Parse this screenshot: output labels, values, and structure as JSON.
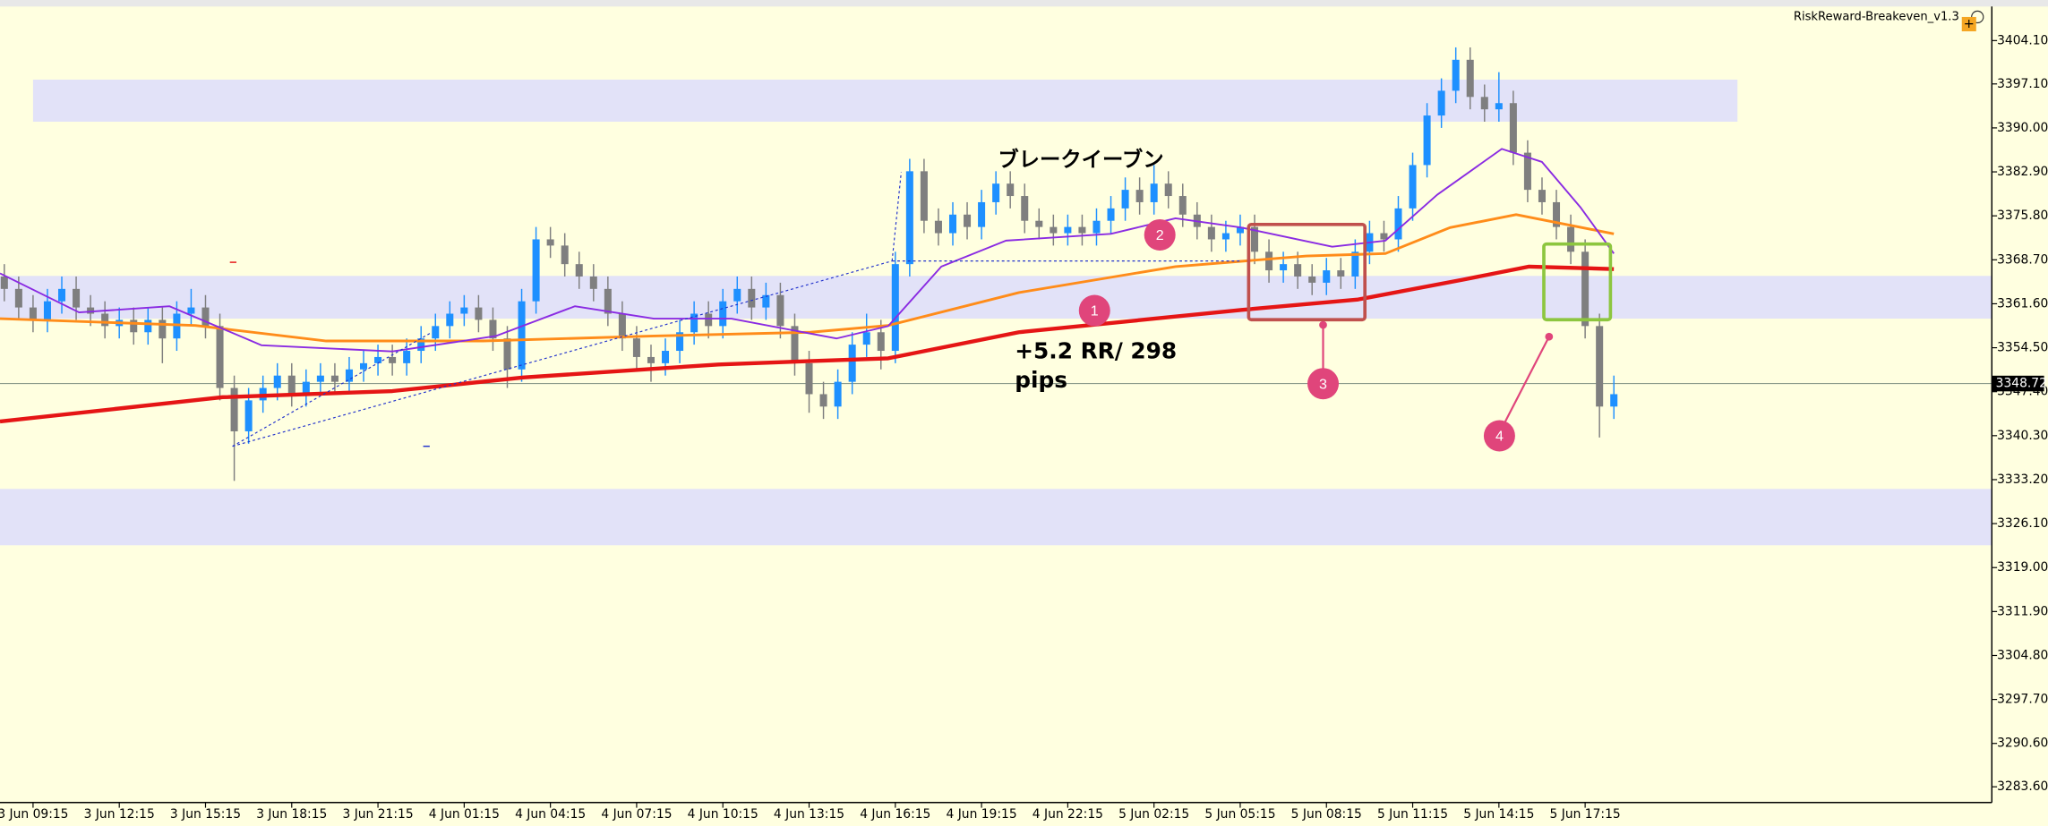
{
  "chart_data": {
    "type": "candlestick",
    "indicator": "RiskReward-Breakeven_v1.3",
    "up_color": "#1e90ff",
    "down_color": "#7f7f7f",
    "candles": [
      [
        3366,
        3368,
        3362,
        3364
      ],
      [
        3364,
        3366,
        3359,
        3361
      ],
      [
        3361,
        3363,
        3357,
        3359
      ],
      [
        3359,
        3364,
        3357,
        3362
      ],
      [
        3362,
        3366,
        3360,
        3364
      ],
      [
        3364,
        3366,
        3359,
        3361
      ],
      [
        3361,
        3363,
        3358,
        3360
      ],
      [
        3360,
        3362,
        3356,
        3358
      ],
      [
        3358,
        3361,
        3356,
        3359
      ],
      [
        3359,
        3361,
        3355,
        3357
      ],
      [
        3357,
        3361,
        3355,
        3359
      ],
      [
        3359,
        3361,
        3352,
        3356
      ],
      [
        3356,
        3362,
        3354,
        3360
      ],
      [
        3360,
        3364,
        3358,
        3361
      ],
      [
        3361,
        3363,
        3356,
        3358
      ],
      [
        3358,
        3360,
        3346,
        3348
      ],
      [
        3348,
        3350,
        3333,
        3341
      ],
      [
        3341,
        3348,
        3339,
        3346
      ],
      [
        3346,
        3350,
        3344,
        3348
      ],
      [
        3348,
        3352,
        3346,
        3350
      ],
      [
        3350,
        3352,
        3345,
        3347
      ],
      [
        3347,
        3351,
        3345,
        3349
      ],
      [
        3349,
        3352,
        3347,
        3350
      ],
      [
        3350,
        3352,
        3347,
        3349
      ],
      [
        3349,
        3353,
        3347,
        3351
      ],
      [
        3351,
        3354,
        3349,
        3352
      ],
      [
        3352,
        3355,
        3350,
        3353
      ],
      [
        3353,
        3355,
        3350,
        3352
      ],
      [
        3352,
        3356,
        3350,
        3354
      ],
      [
        3354,
        3358,
        3352,
        3356
      ],
      [
        3356,
        3360,
        3354,
        3358
      ],
      [
        3358,
        3362,
        3356,
        3360
      ],
      [
        3360,
        3363,
        3358,
        3361
      ],
      [
        3361,
        3363,
        3357,
        3359
      ],
      [
        3359,
        3361,
        3354,
        3356
      ],
      [
        3356,
        3358,
        3348,
        3351
      ],
      [
        3351,
        3364,
        3349,
        3362
      ],
      [
        3362,
        3374,
        3360,
        3372
      ],
      [
        3372,
        3374,
        3369,
        3371
      ],
      [
        3371,
        3373,
        3366,
        3368
      ],
      [
        3368,
        3370,
        3364,
        3366
      ],
      [
        3366,
        3368,
        3362,
        3364
      ],
      [
        3364,
        3366,
        3358,
        3360
      ],
      [
        3360,
        3362,
        3354,
        3356
      ],
      [
        3356,
        3358,
        3351,
        3353
      ],
      [
        3353,
        3355,
        3349,
        3352
      ],
      [
        3352,
        3356,
        3350,
        3354
      ],
      [
        3354,
        3359,
        3352,
        3357
      ],
      [
        3357,
        3362,
        3355,
        3360
      ],
      [
        3360,
        3362,
        3356,
        3358
      ],
      [
        3358,
        3364,
        3356,
        3362
      ],
      [
        3362,
        3366,
        3360,
        3364
      ],
      [
        3364,
        3366,
        3359,
        3361
      ],
      [
        3361,
        3365,
        3359,
        3363
      ],
      [
        3363,
        3365,
        3356,
        3358
      ],
      [
        3358,
        3360,
        3350,
        3352
      ],
      [
        3352,
        3354,
        3344,
        3347
      ],
      [
        3347,
        3349,
        3343,
        3345
      ],
      [
        3345,
        3351,
        3343,
        3349
      ],
      [
        3349,
        3357,
        3347,
        3355
      ],
      [
        3355,
        3360,
        3353,
        3357
      ],
      [
        3357,
        3359,
        3351,
        3354
      ],
      [
        3354,
        3370,
        3352,
        3368
      ],
      [
        3368,
        3385,
        3366,
        3383
      ],
      [
        3383,
        3385,
        3373,
        3375
      ],
      [
        3375,
        3377,
        3371,
        3373
      ],
      [
        3373,
        3378,
        3371,
        3376
      ],
      [
        3376,
        3378,
        3372,
        3374
      ],
      [
        3374,
        3380,
        3372,
        3378
      ],
      [
        3378,
        3383,
        3376,
        3381
      ],
      [
        3381,
        3383,
        3377,
        3379
      ],
      [
        3379,
        3381,
        3373,
        3375
      ],
      [
        3375,
        3377,
        3372,
        3374
      ],
      [
        3374,
        3376,
        3371,
        3373
      ],
      [
        3373,
        3376,
        3371,
        3374
      ],
      [
        3374,
        3376,
        3371,
        3373
      ],
      [
        3373,
        3377,
        3371,
        3375
      ],
      [
        3375,
        3379,
        3373,
        3377
      ],
      [
        3377,
        3382,
        3375,
        3380
      ],
      [
        3380,
        3382,
        3376,
        3378
      ],
      [
        3378,
        3384,
        3376,
        3381
      ],
      [
        3381,
        3383,
        3377,
        3379
      ],
      [
        3379,
        3381,
        3374,
        3376
      ],
      [
        3376,
        3378,
        3372,
        3374
      ],
      [
        3374,
        3376,
        3370,
        3372
      ],
      [
        3372,
        3375,
        3370,
        3373
      ],
      [
        3373,
        3376,
        3371,
        3374
      ],
      [
        3374,
        3376,
        3368,
        3370
      ],
      [
        3370,
        3372,
        3365,
        3367
      ],
      [
        3367,
        3370,
        3365,
        3368
      ],
      [
        3368,
        3370,
        3364,
        3366
      ],
      [
        3366,
        3368,
        3363,
        3365
      ],
      [
        3365,
        3369,
        3363,
        3367
      ],
      [
        3367,
        3369,
        3364,
        3366
      ],
      [
        3366,
        3372,
        3364,
        3370
      ],
      [
        3370,
        3375,
        3368,
        3373
      ],
      [
        3373,
        3375,
        3370,
        3372
      ],
      [
        3372,
        3379,
        3370,
        3377
      ],
      [
        3377,
        3386,
        3375,
        3384
      ],
      [
        3384,
        3394,
        3382,
        3392
      ],
      [
        3392,
        3398,
        3390,
        3396
      ],
      [
        3396,
        3403,
        3394,
        3401
      ],
      [
        3401,
        3403,
        3393,
        3395
      ],
      [
        3395,
        3397,
        3391,
        3393
      ],
      [
        3393,
        3399,
        3391,
        3394
      ],
      [
        3394,
        3396,
        3384,
        3386
      ],
      [
        3386,
        3388,
        3378,
        3380
      ],
      [
        3380,
        3382,
        3376,
        3378
      ],
      [
        3378,
        3380,
        3372,
        3374
      ],
      [
        3374,
        3376,
        3368,
        3370
      ],
      [
        3370,
        3372,
        3356,
        3358
      ],
      [
        3358,
        3360,
        3340,
        3345
      ],
      [
        3345,
        3350,
        3343,
        3347
      ]
    ],
    "series": [
      {
        "color": "#e51515",
        "width": 3,
        "x": [
          -0.3,
          15.2,
          27,
          36.1,
          49.7,
          61.5,
          70.6,
          86.1,
          94.2,
          101.5,
          106.1,
          112
        ],
        "values": [
          3342.6,
          3346.5,
          3347.5,
          3349.7,
          3351.8,
          3352.8,
          3357,
          3360.6,
          3362.3,
          3365.5,
          3367.6,
          3367.2
        ]
      },
      {
        "color": "#ff8c1a",
        "width": 2,
        "x": [
          -0.3,
          13.3,
          22.4,
          33.3,
          45.2,
          56.1,
          61.5,
          70.6,
          81.5,
          90.6,
          96.1,
          100.6,
          105.2,
          112
        ],
        "values": [
          3359.2,
          3358.1,
          3355.6,
          3355.6,
          3356.4,
          3357,
          3358.1,
          3363.4,
          3367.6,
          3369.3,
          3369.7,
          3373.9,
          3376,
          3372.9
        ]
      },
      {
        "color": "#8a2be2",
        "width": 1.3,
        "x": [
          -0.3,
          5.2,
          11.5,
          17.9,
          27,
          34.2,
          39.7,
          45.2,
          50.6,
          57.9,
          61.5,
          65.2,
          69.7,
          77,
          81.5,
          86.1,
          92.4,
          96.1,
          99.7,
          104.2,
          107,
          109.7,
          112
        ],
        "values": [
          3366.5,
          3360.2,
          3361.2,
          3354.9,
          3353.9,
          3356.4,
          3361.2,
          3359.2,
          3359.2,
          3356,
          3358,
          3367.6,
          3371.8,
          3372.9,
          3375.4,
          3373.9,
          3370.8,
          3371.8,
          3379.2,
          3386.6,
          3384.5,
          3377.1,
          3369.7
        ]
      }
    ],
    "zones": [
      {
        "x": [
          2,
          120.6
        ],
        "y": [
          3391.0,
          3397.8
        ]
      },
      {
        "y": [
          3359.2,
          3366.1
        ]
      },
      {
        "y": [
          3322.6,
          3331.7
        ]
      }
    ],
    "zone_color": "#e2e2f8",
    "current_price": 3348.72,
    "xlim": [
      -0.3,
      138.3
    ],
    "ylim": [
      3281.06,
      3409.6
    ],
    "xticks": [
      {
        "value": 2,
        "label": "3 Jun 09:15"
      },
      {
        "value": 8,
        "label": "3 Jun 12:15"
      },
      {
        "value": 14,
        "label": "3 Jun 15:15"
      },
      {
        "value": 20,
        "label": "3 Jun 18:15"
      },
      {
        "value": 26,
        "label": "3 Jun 21:15"
      },
      {
        "value": 32,
        "label": "4 Jun 01:15"
      },
      {
        "value": 38,
        "label": "4 Jun 04:15"
      },
      {
        "value": 44,
        "label": "4 Jun 07:15"
      },
      {
        "value": 50,
        "label": "4 Jun 10:15"
      },
      {
        "value": 56,
        "label": "4 Jun 13:15"
      },
      {
        "value": 62,
        "label": "4 Jun 16:15"
      },
      {
        "value": 68,
        "label": "4 Jun 19:15"
      },
      {
        "value": 74,
        "label": "4 Jun 22:15"
      },
      {
        "value": 80,
        "label": "5 Jun 02:15"
      },
      {
        "value": 86,
        "label": "5 Jun 05:15"
      },
      {
        "value": 92,
        "label": "5 Jun 08:15"
      },
      {
        "value": 98,
        "label": "5 Jun 11:15"
      },
      {
        "value": 104,
        "label": "5 Jun 14:15"
      },
      {
        "value": 110,
        "label": "5 Jun 17:15"
      }
    ],
    "yticks": [
      {
        "value": 3404.1,
        "label": "3404.10"
      },
      {
        "value": 3397.1,
        "label": "3397.10"
      },
      {
        "value": 3390.0,
        "label": "3390.00"
      },
      {
        "value": 3382.9,
        "label": "3382.90"
      },
      {
        "value": 3375.8,
        "label": "3375.80"
      },
      {
        "value": 3368.7,
        "label": "3368.70"
      },
      {
        "value": 3361.6,
        "label": "3361.60"
      },
      {
        "value": 3354.5,
        "label": "3354.50"
      },
      {
        "value": 3347.4,
        "label": "3347.40"
      },
      {
        "value": 3340.3,
        "label": "3340.30"
      },
      {
        "value": 3333.2,
        "label": "3333.20"
      },
      {
        "value": 3326.1,
        "label": "3326.10"
      },
      {
        "value": 3319.0,
        "label": "3319.00"
      },
      {
        "value": 3311.9,
        "label": "3311.90"
      },
      {
        "value": 3304.8,
        "label": "3304.80"
      },
      {
        "value": 3297.7,
        "label": "3297.70"
      },
      {
        "value": 3290.6,
        "label": "3290.60"
      },
      {
        "value": 3283.6,
        "label": "3283.60"
      }
    ],
    "annotations": {
      "breakeven": "ブレークイーブン",
      "result": [
        "+5.2 RR/ 298",
        "pips"
      ],
      "markers": [
        "1",
        "2",
        "3",
        "4"
      ]
    }
  }
}
